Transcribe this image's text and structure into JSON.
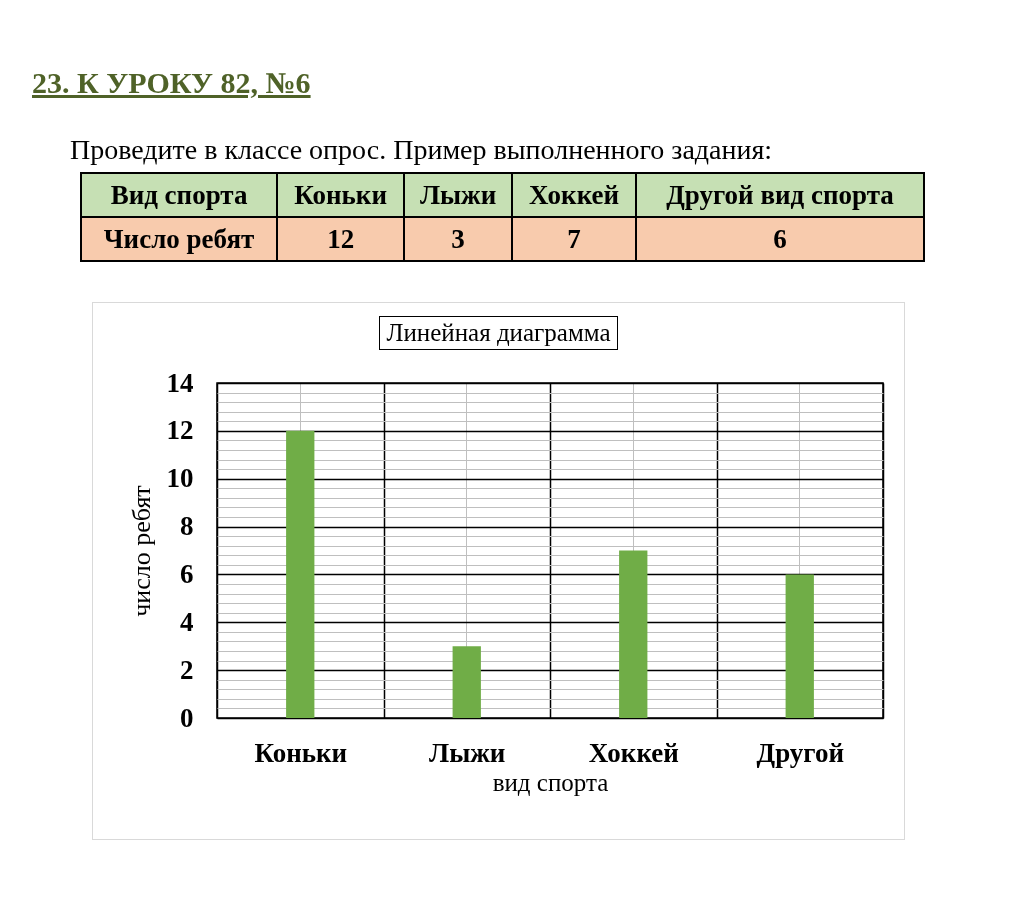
{
  "chart_data": {
    "type": "bar",
    "title": "Линейная диаграмма",
    "xlabel": "вид спорта",
    "ylabel": "число ребят",
    "categories": [
      "Коньки",
      "Лыжи",
      "Хоккей",
      "Другой"
    ],
    "values": [
      12,
      3,
      7,
      6
    ],
    "color": "#70ad47",
    "ylim": [
      0,
      14
    ],
    "yticks": [
      0,
      2,
      4,
      6,
      8,
      10,
      12,
      14
    ],
    "grid": true,
    "data_labels": true,
    "annotations": [
      "23. К УРОКУ 82, №6",
      "Проведите в классе опрос. Пример выполненного задания:",
      "Вид спорта",
      "Коньки",
      "Лыжи",
      "Хоккей",
      "Другой вид спорта",
      "Число ребят"
    ]
  }
}
